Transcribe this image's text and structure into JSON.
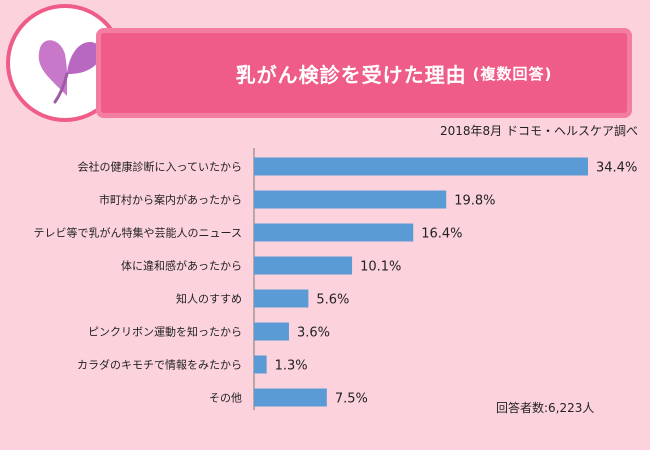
{
  "header": {
    "title": "乳がん検診を受けた理由",
    "subtitle": "(複数回答)",
    "source": "2018年8月 ドコモ・ヘルスケア調べ",
    "respondents": "回答者数:6,223人"
  },
  "colors": {
    "background": "#fcd3dd",
    "banner": "#ee5c87",
    "bar": "#5b9bd5",
    "logo": "#c878c8"
  },
  "chart_data": {
    "type": "bar",
    "orientation": "horizontal",
    "title": "乳がん検診を受けた理由",
    "categories": [
      "会社の健康診断に入っていたから",
      "市町村から案内があったから",
      "テレビ等で乳がん特集や芸能人のニュース",
      "体に違和感があったから",
      "知人のすすめ",
      "ピンクリボン運動を知ったから",
      "カラダのキモチで情報をみたから",
      "その他"
    ],
    "values": [
      34.4,
      19.8,
      16.4,
      10.1,
      5.6,
      3.6,
      1.3,
      7.5
    ],
    "value_labels": [
      "34.4%",
      "19.8%",
      "16.4%",
      "10.1%",
      "5.6%",
      "3.6%",
      "1.3%",
      "7.5%"
    ],
    "xlim": [
      0,
      34.4
    ],
    "grid": false,
    "legend": "none"
  }
}
